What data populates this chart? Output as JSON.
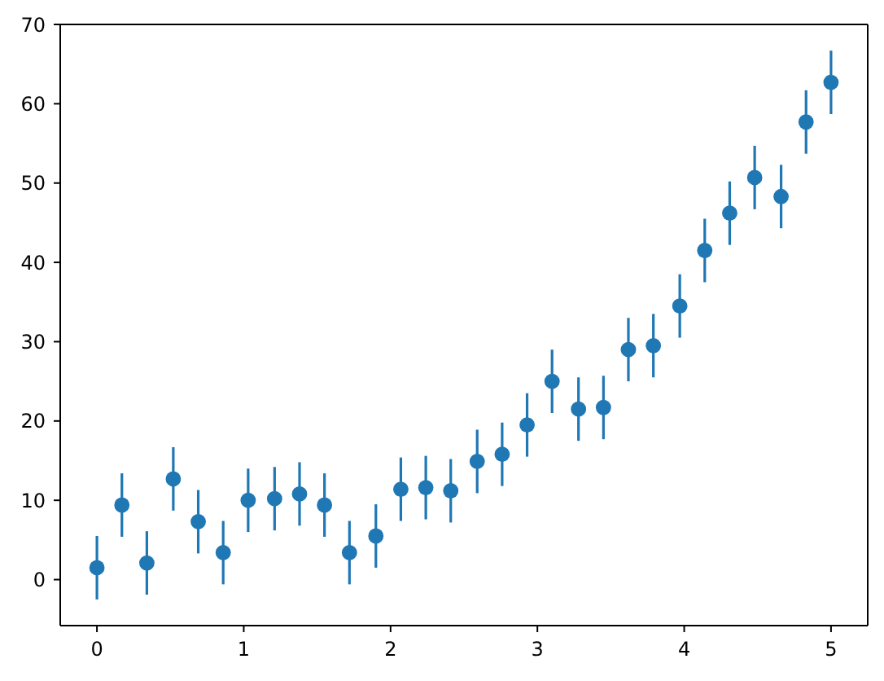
{
  "chart_data": {
    "type": "scatter",
    "x": [
      0,
      0.17,
      0.34,
      0.52,
      0.69,
      0.86,
      1.03,
      1.21,
      1.38,
      1.55,
      1.72,
      1.9,
      2.07,
      2.24,
      2.41,
      2.59,
      2.76,
      2.93,
      3.1,
      3.28,
      3.45,
      3.62,
      3.79,
      3.97,
      4.14,
      4.31,
      4.48,
      4.66,
      4.83,
      5
    ],
    "values": [
      1.5,
      9.4,
      2.1,
      12.7,
      7.3,
      3.4,
      10.0,
      10.2,
      10.8,
      9.4,
      3.4,
      5.5,
      11.4,
      11.6,
      11.2,
      14.9,
      15.8,
      19.5,
      25.0,
      21.5,
      21.7,
      29.0,
      29.5,
      34.5,
      41.5,
      46.2,
      50.7,
      48.3,
      57.7,
      62.7
    ],
    "errors": [
      4,
      4,
      4,
      4,
      4,
      4,
      4,
      4,
      4,
      4,
      4,
      4,
      4,
      4,
      4,
      4,
      4,
      4,
      4,
      4,
      4,
      4,
      4,
      4,
      4,
      4,
      4,
      4,
      4,
      4
    ],
    "color": "#1f77b4",
    "xlim": [
      -0.25,
      5.25
    ],
    "ylim": [
      -5.8,
      70
    ],
    "xticks": [
      0,
      1,
      2,
      3,
      4,
      5
    ],
    "yticks": [
      0,
      10,
      20,
      30,
      40,
      50,
      60,
      70
    ],
    "marker": "circle"
  }
}
